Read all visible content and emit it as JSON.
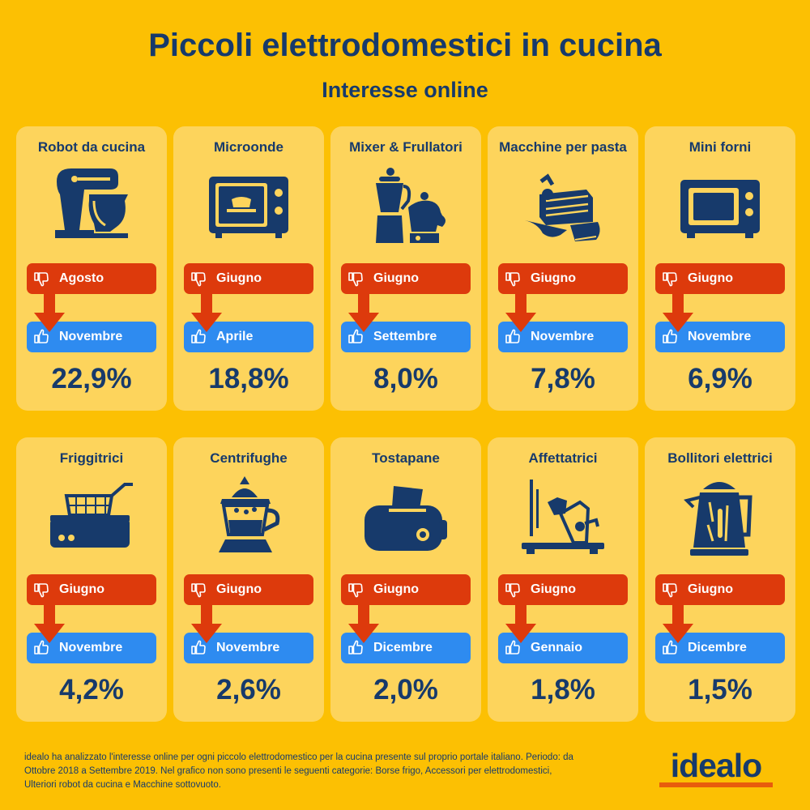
{
  "header": {
    "title": "Piccoli elettrodomestici in cucina",
    "subtitle": "Interesse online"
  },
  "colors": {
    "background": "#fcc003",
    "card": "#fdd45c",
    "navy": "#173a6b",
    "red": "#dd3a0c",
    "blue": "#2e8bf0",
    "logo_underline": "#e85c0c"
  },
  "cards": [
    {
      "name": "Robot da cucina",
      "icon": "stand-mixer-icon",
      "low_month": "Agosto",
      "high_month": "Novembre",
      "percent": "22,9%"
    },
    {
      "name": "Microonde",
      "icon": "microwave-icon",
      "low_month": "Giugno",
      "high_month": "Aprile",
      "percent": "18,8%"
    },
    {
      "name": "Mixer & Frullatori",
      "icon": "blender-icon",
      "low_month": "Giugno",
      "high_month": "Settembre",
      "percent": "8,0%"
    },
    {
      "name": "Macchine per pasta",
      "icon": "pasta-machine-icon",
      "low_month": "Giugno",
      "high_month": "Novembre",
      "percent": "7,8%"
    },
    {
      "name": "Mini forni",
      "icon": "mini-oven-icon",
      "low_month": "Giugno",
      "high_month": "Novembre",
      "percent": "6,9%"
    },
    {
      "name": "Friggitrici",
      "icon": "fryer-icon",
      "low_month": "Giugno",
      "high_month": "Novembre",
      "percent": "4,2%"
    },
    {
      "name": "Centrifughe",
      "icon": "juicer-icon",
      "low_month": "Giugno",
      "high_month": "Novembre",
      "percent": "2,6%"
    },
    {
      "name": "Tostapane",
      "icon": "toaster-icon",
      "low_month": "Giugno",
      "high_month": "Dicembre",
      "percent": "2,0%"
    },
    {
      "name": "Affettatrici",
      "icon": "slicer-icon",
      "low_month": "Giugno",
      "high_month": "Gennaio",
      "percent": "1,8%"
    },
    {
      "name": "Bollitori elettrici",
      "icon": "kettle-icon",
      "low_month": "Giugno",
      "high_month": "Dicembre",
      "percent": "1,5%"
    }
  ],
  "footnote": "idealo ha analizzato l'interesse online per ogni piccolo elettrodomestico per la cucina presente sul proprio portale italiano. Periodo: da Ottobre 2018 a Settembre 2019. Nel grafico non sono presenti le seguenti categorie: Borse frigo, Accessori per elettrodomestici, Ulteriori robot da cucina e Macchine sottovuoto.",
  "logo": "idealo"
}
